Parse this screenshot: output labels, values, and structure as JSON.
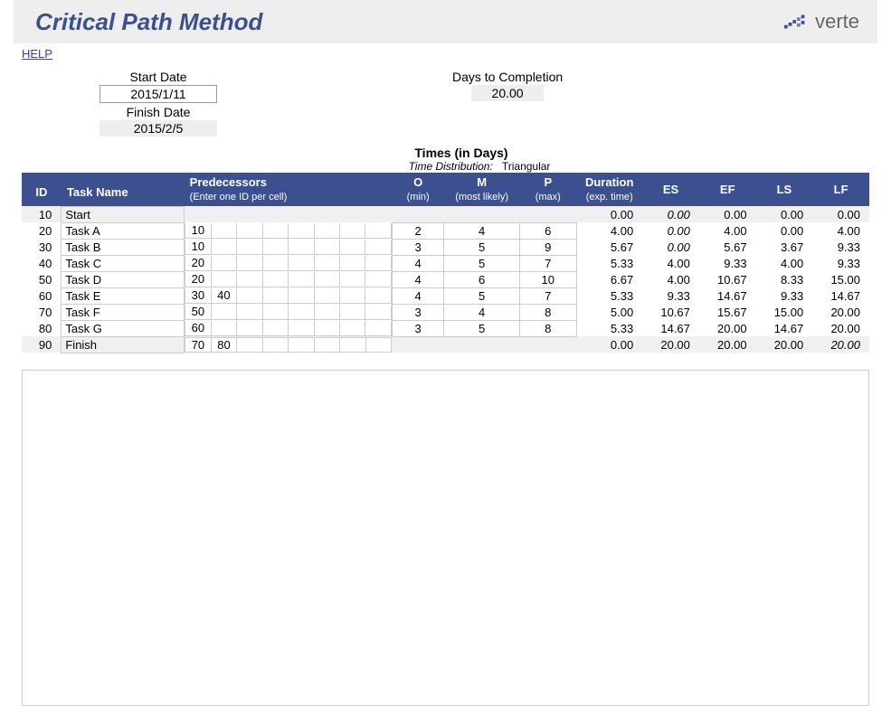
{
  "header": {
    "title": "Critical Path Method",
    "logo_text": "verte",
    "help_label": "HELP"
  },
  "colors": {
    "header_blue": "#3c5090",
    "header_gray": "#eeeeee",
    "row_alt": "#f0f0f0",
    "border": "#cccccc"
  },
  "info": {
    "start_date_label": "Start Date",
    "start_date_value": "2015/1/11",
    "finish_date_label": "Finish Date",
    "finish_date_value": "2015/2/5",
    "days_to_completion_label": "Days to Completion",
    "days_to_completion_value": "20.00"
  },
  "times_section": {
    "title": "Times (in Days)",
    "time_distribution_label": "Time Distribution:",
    "time_distribution_value": "Triangular"
  },
  "table": {
    "headers": {
      "id": "ID",
      "task_name": "Task Name",
      "predecessors": "Predecessors",
      "predecessors_sub": "(Enter one ID per cell)",
      "o": "O",
      "o_sub": "(min)",
      "m": "M",
      "m_sub": "(most likely)",
      "p": "P",
      "p_sub": "(max)",
      "duration": "Duration",
      "duration_sub": "(exp. time)",
      "es": "ES",
      "ef": "EF",
      "ls": "LS",
      "lf": "LF"
    },
    "rows": [
      {
        "id": "10",
        "task": "Start",
        "pred": [
          "",
          "",
          "",
          "",
          "",
          "",
          "",
          ""
        ],
        "o": "",
        "m": "",
        "p": "",
        "dur": "0.00",
        "es": "0.00",
        "ef": "0.00",
        "ls": "0.00",
        "lf": "0.00",
        "gray": true,
        "italic_es": true
      },
      {
        "id": "20",
        "task": "Task A",
        "pred": [
          "10",
          "",
          "",
          "",
          "",
          "",
          "",
          ""
        ],
        "o": "2",
        "m": "4",
        "p": "6",
        "dur": "4.00",
        "es": "0.00",
        "ef": "4.00",
        "ls": "0.00",
        "lf": "4.00",
        "italic_es": true
      },
      {
        "id": "30",
        "task": "Task B",
        "pred": [
          "10",
          "",
          "",
          "",
          "",
          "",
          "",
          ""
        ],
        "o": "3",
        "m": "5",
        "p": "9",
        "dur": "5.67",
        "es": "0.00",
        "ef": "5.67",
        "ls": "3.67",
        "lf": "9.33",
        "italic_es": true
      },
      {
        "id": "40",
        "task": "Task C",
        "pred": [
          "20",
          "",
          "",
          "",
          "",
          "",
          "",
          ""
        ],
        "o": "4",
        "m": "5",
        "p": "7",
        "dur": "5.33",
        "es": "4.00",
        "ef": "9.33",
        "ls": "4.00",
        "lf": "9.33"
      },
      {
        "id": "50",
        "task": "Task D",
        "pred": [
          "20",
          "",
          "",
          "",
          "",
          "",
          "",
          ""
        ],
        "o": "4",
        "m": "6",
        "p": "10",
        "dur": "6.67",
        "es": "4.00",
        "ef": "10.67",
        "ls": "8.33",
        "lf": "15.00"
      },
      {
        "id": "60",
        "task": "Task E",
        "pred": [
          "30",
          "40",
          "",
          "",
          "",
          "",
          "",
          ""
        ],
        "o": "4",
        "m": "5",
        "p": "7",
        "dur": "5.33",
        "es": "9.33",
        "ef": "14.67",
        "ls": "9.33",
        "lf": "14.67"
      },
      {
        "id": "70",
        "task": "Task F",
        "pred": [
          "50",
          "",
          "",
          "",
          "",
          "",
          "",
          ""
        ],
        "o": "3",
        "m": "4",
        "p": "8",
        "dur": "5.00",
        "es": "10.67",
        "ef": "15.67",
        "ls": "15.00",
        "lf": "20.00"
      },
      {
        "id": "80",
        "task": "Task G",
        "pred": [
          "60",
          "",
          "",
          "",
          "",
          "",
          "",
          ""
        ],
        "o": "3",
        "m": "5",
        "p": "8",
        "dur": "5.33",
        "es": "14.67",
        "ef": "20.00",
        "ls": "14.67",
        "lf": "20.00"
      },
      {
        "id": "90",
        "task": "Finish",
        "pred": [
          "70",
          "80",
          "",
          "",
          "",
          "",
          "",
          ""
        ],
        "o": "",
        "m": "",
        "p": "",
        "dur": "0.00",
        "es": "20.00",
        "ef": "20.00",
        "ls": "20.00",
        "lf": "20.00",
        "gray": true,
        "italic_lf": true,
        "pred_bordered": true
      }
    ]
  }
}
